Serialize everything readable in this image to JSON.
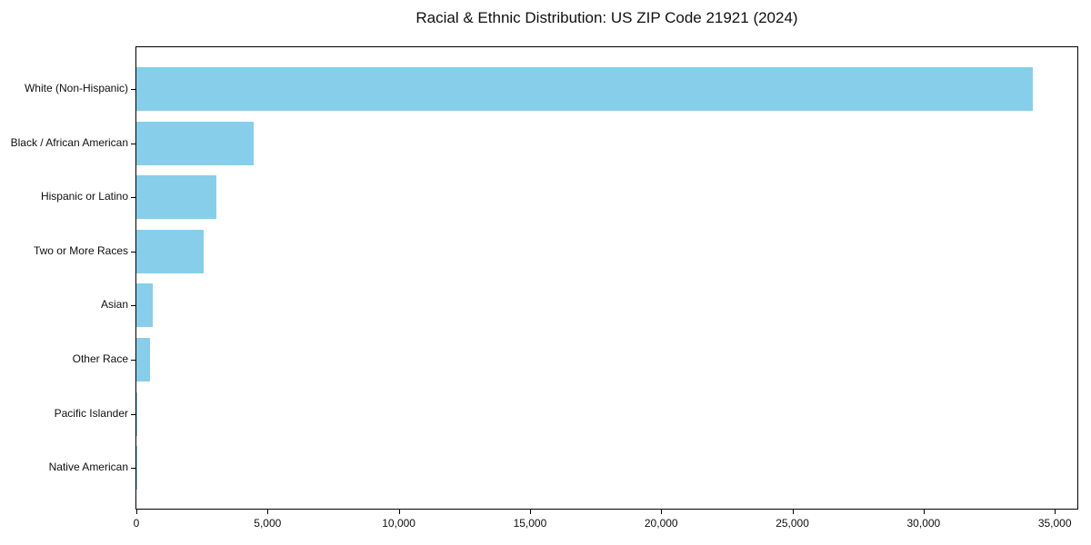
{
  "title": "Racial & Ethnic Distribution: US ZIP Code 21921 (2024)",
  "colors": {
    "bar": "#87CEEB",
    "axis": "#000000",
    "text": "#0f0f0f",
    "background": "#ffffff"
  },
  "chart_data": {
    "type": "bar",
    "orientation": "horizontal",
    "title": "Racial & Ethnic Distribution: US ZIP Code 21921 (2024)",
    "xlabel": "",
    "ylabel": "",
    "categories": [
      "White (Non-Hispanic)",
      "Black / African American",
      "Hispanic or Latino",
      "Two or More Races",
      "Asian",
      "Other Race",
      "Pacific Islander",
      "Native American"
    ],
    "values": [
      34170,
      4460,
      3040,
      2560,
      620,
      520,
      45,
      15
    ],
    "xlim": [
      0,
      35860
    ],
    "xticks": [
      0,
      5000,
      10000,
      15000,
      20000,
      25000,
      30000,
      35000
    ],
    "xtick_labels": [
      "0",
      "5,000",
      "10,000",
      "15,000",
      "20,000",
      "25,000",
      "30,000",
      "35,000"
    ],
    "grid": false,
    "legend": "none",
    "bar_color": "#87CEEB"
  }
}
